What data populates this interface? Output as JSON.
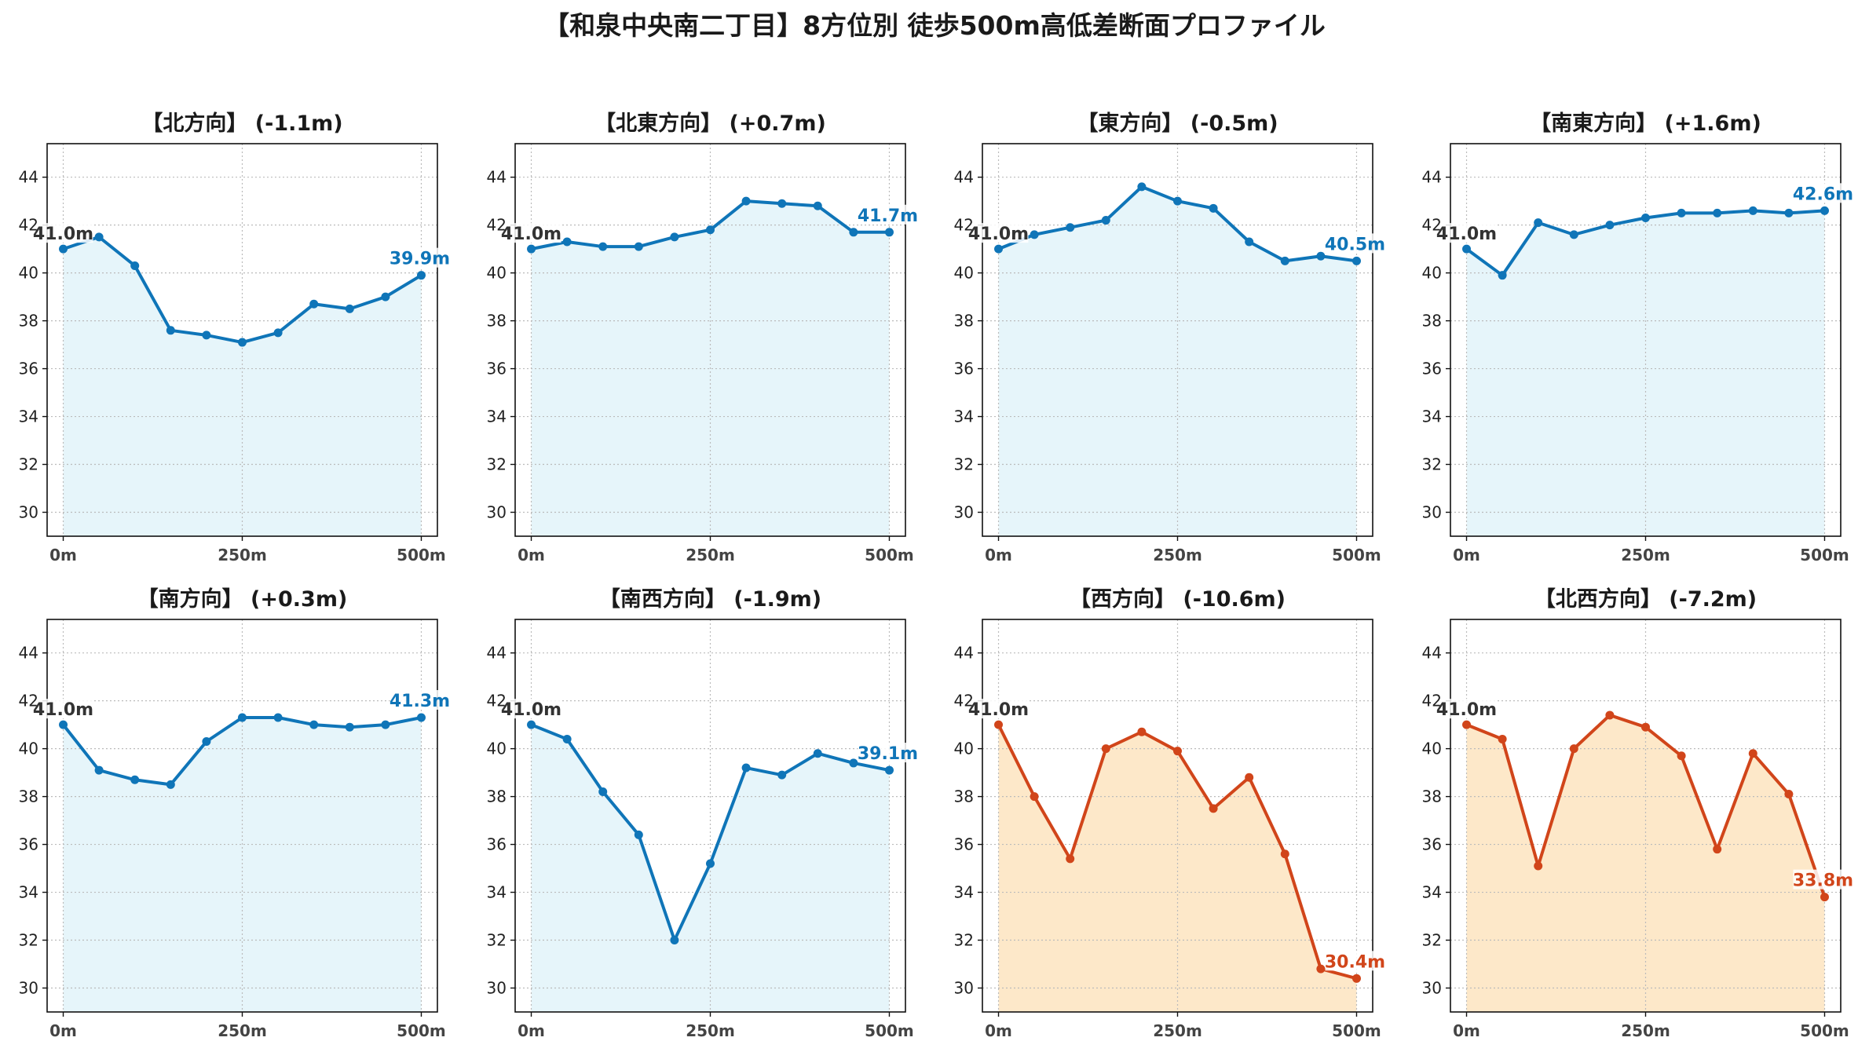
{
  "title": "【和泉中央南二丁目】8方位別 徒歩500m高低差断面プロファイル",
  "colors": {
    "normal_line": "#0f75b8",
    "normal_fill": "#e6f5fa",
    "drop_line": "#d1451a",
    "drop_fill": "#fde8c9",
    "grid": "#bbbbbb"
  },
  "chart_data": [
    {
      "type": "area",
      "title": "【北方向】 (-1.1m)",
      "x": [
        0,
        50,
        100,
        150,
        200,
        250,
        300,
        350,
        400,
        450,
        500
      ],
      "values": [
        41.0,
        41.5,
        40.3,
        37.6,
        37.4,
        37.1,
        37.5,
        38.7,
        38.5,
        39.0,
        39.9
      ],
      "start_label": "41.0m",
      "end_label": "39.9m",
      "style": "normal",
      "ylim": [
        29,
        45.4
      ],
      "yticks": [
        30,
        32,
        34,
        36,
        38,
        40,
        42,
        44
      ],
      "xticks": [
        "0m",
        "250m",
        "500m"
      ],
      "grid": true
    },
    {
      "type": "area",
      "title": "【北東方向】 (+0.7m)",
      "x": [
        0,
        50,
        100,
        150,
        200,
        250,
        300,
        350,
        400,
        450,
        500
      ],
      "values": [
        41.0,
        41.3,
        41.1,
        41.1,
        41.5,
        41.8,
        43.0,
        42.9,
        42.8,
        41.7,
        41.7
      ],
      "start_label": "41.0m",
      "end_label": "41.7m",
      "style": "normal",
      "ylim": [
        29,
        45.4
      ],
      "yticks": [
        30,
        32,
        34,
        36,
        38,
        40,
        42,
        44
      ],
      "xticks": [
        "0m",
        "250m",
        "500m"
      ],
      "grid": true
    },
    {
      "type": "area",
      "title": "【東方向】 (-0.5m)",
      "x": [
        0,
        50,
        100,
        150,
        200,
        250,
        300,
        350,
        400,
        450,
        500
      ],
      "values": [
        41.0,
        41.6,
        41.9,
        42.2,
        43.6,
        43.0,
        42.7,
        41.3,
        40.5,
        40.7,
        40.5
      ],
      "start_label": "41.0m",
      "end_label": "40.5m",
      "style": "normal",
      "ylim": [
        29,
        45.4
      ],
      "yticks": [
        30,
        32,
        34,
        36,
        38,
        40,
        42,
        44
      ],
      "xticks": [
        "0m",
        "250m",
        "500m"
      ],
      "grid": true
    },
    {
      "type": "area",
      "title": "【南東方向】 (+1.6m)",
      "x": [
        0,
        50,
        100,
        150,
        200,
        250,
        300,
        350,
        400,
        450,
        500
      ],
      "values": [
        41.0,
        39.9,
        42.1,
        41.6,
        42.0,
        42.3,
        42.5,
        42.5,
        42.6,
        42.5,
        42.6
      ],
      "start_label": "41.0m",
      "end_label": "42.6m",
      "style": "normal",
      "ylim": [
        29,
        45.4
      ],
      "yticks": [
        30,
        32,
        34,
        36,
        38,
        40,
        42,
        44
      ],
      "xticks": [
        "0m",
        "250m",
        "500m"
      ],
      "grid": true
    },
    {
      "type": "area",
      "title": "【南方向】 (+0.3m)",
      "x": [
        0,
        50,
        100,
        150,
        200,
        250,
        300,
        350,
        400,
        450,
        500
      ],
      "values": [
        41.0,
        39.1,
        38.7,
        38.5,
        40.3,
        41.3,
        41.3,
        41.0,
        40.9,
        41.0,
        41.3
      ],
      "start_label": "41.0m",
      "end_label": "41.3m",
      "style": "normal",
      "ylim": [
        29,
        45.4
      ],
      "yticks": [
        30,
        32,
        34,
        36,
        38,
        40,
        42,
        44
      ],
      "xticks": [
        "0m",
        "250m",
        "500m"
      ],
      "grid": true
    },
    {
      "type": "area",
      "title": "【南西方向】 (-1.9m)",
      "x": [
        0,
        50,
        100,
        150,
        200,
        250,
        300,
        350,
        400,
        450,
        500
      ],
      "values": [
        41.0,
        40.4,
        38.2,
        36.4,
        32.0,
        35.2,
        39.2,
        38.9,
        39.8,
        39.4,
        39.1
      ],
      "start_label": "41.0m",
      "end_label": "39.1m",
      "style": "normal",
      "ylim": [
        29,
        45.4
      ],
      "yticks": [
        30,
        32,
        34,
        36,
        38,
        40,
        42,
        44
      ],
      "xticks": [
        "0m",
        "250m",
        "500m"
      ],
      "grid": true
    },
    {
      "type": "area",
      "title": "【西方向】 (-10.6m)",
      "x": [
        0,
        50,
        100,
        150,
        200,
        250,
        300,
        350,
        400,
        450,
        500
      ],
      "values": [
        41.0,
        38.0,
        35.4,
        40.0,
        40.7,
        39.9,
        37.5,
        38.8,
        35.6,
        30.8,
        30.4
      ],
      "start_label": "41.0m",
      "end_label": "30.4m",
      "style": "drop",
      "ylim": [
        29,
        45.4
      ],
      "yticks": [
        30,
        32,
        34,
        36,
        38,
        40,
        42,
        44
      ],
      "xticks": [
        "0m",
        "250m",
        "500m"
      ],
      "grid": true
    },
    {
      "type": "area",
      "title": "【北西方向】 (-7.2m)",
      "x": [
        0,
        50,
        100,
        150,
        200,
        250,
        300,
        350,
        400,
        450,
        500
      ],
      "values": [
        41.0,
        40.4,
        35.1,
        40.0,
        41.4,
        40.9,
        39.7,
        35.8,
        39.8,
        38.1,
        33.8
      ],
      "start_label": "41.0m",
      "end_label": "33.8m",
      "style": "drop",
      "ylim": [
        29,
        45.4
      ],
      "yticks": [
        30,
        32,
        34,
        36,
        38,
        40,
        42,
        44
      ],
      "xticks": [
        "0m",
        "250m",
        "500m"
      ],
      "grid": true
    }
  ]
}
